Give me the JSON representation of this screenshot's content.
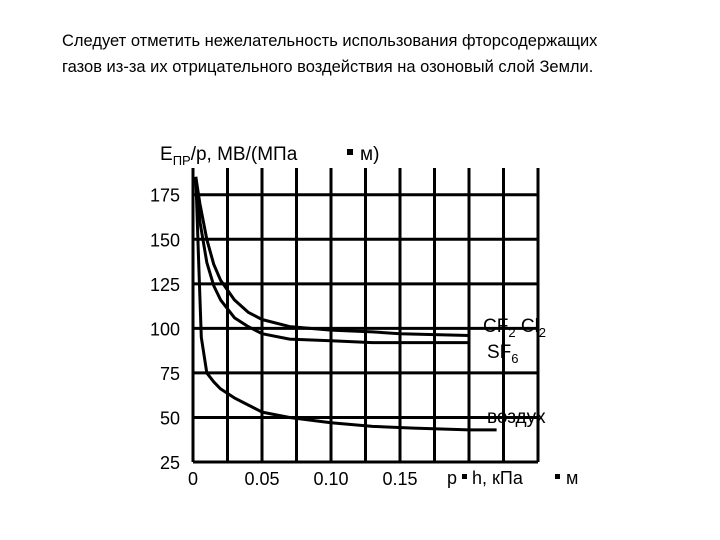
{
  "slide": {
    "text_line1": "Следует отметить нежелательность использования фторсодержащих",
    "text_line2": "газов из-за их отрицательного воздействия на озоновый слой Земли."
  },
  "chart_data": {
    "type": "line",
    "ylabel_main": "E",
    "ylabel_sub": "ПР",
    "ylabel_rest": "/p, МВ/(МПа",
    "ylabel_unit": "м)",
    "xlabel": "p",
    "xlabel_rest": "h, кПа",
    "xlabel_unit": "м",
    "xlim": [
      0,
      0.25
    ],
    "ylim": [
      25,
      190
    ],
    "x_ticks": [
      "0",
      "0.05",
      "0.10",
      "0.15"
    ],
    "x_tick_values": [
      0,
      0.05,
      0.1,
      0.15
    ],
    "y_ticks": [
      "25",
      "50",
      "75",
      "100",
      "125",
      "150",
      "175"
    ],
    "y_tick_values": [
      25,
      50,
      75,
      100,
      125,
      150,
      175
    ],
    "grid": true,
    "series": [
      {
        "label_main": "CF",
        "label_sub1": "2",
        "label_mid": " Cl",
        "label_sub2": "2",
        "x": [
          0.002,
          0.005,
          0.01,
          0.015,
          0.02,
          0.03,
          0.04,
          0.05,
          0.07,
          0.1,
          0.13,
          0.15,
          0.2
        ],
        "y": [
          185,
          170,
          150,
          136,
          127,
          116,
          109,
          105,
          101,
          99,
          98,
          97,
          96
        ]
      },
      {
        "label_main": "SF",
        "label_sub1": "6",
        "x": [
          0.002,
          0.005,
          0.01,
          0.015,
          0.02,
          0.03,
          0.04,
          0.05,
          0.07,
          0.1,
          0.13,
          0.15,
          0.2
        ],
        "y": [
          185,
          160,
          137,
          124,
          116,
          106,
          101,
          97,
          94,
          93,
          92,
          92,
          92
        ]
      },
      {
        "label_main": "воздух",
        "x": [
          0.002,
          0.004,
          0.006,
          0.01,
          0.015,
          0.02,
          0.03,
          0.04,
          0.05,
          0.07,
          0.1,
          0.13,
          0.16,
          0.2,
          0.22
        ],
        "y": [
          185,
          140,
          95,
          75,
          70,
          66,
          61,
          57,
          53,
          50,
          47,
          45,
          44,
          43,
          43
        ]
      }
    ]
  }
}
